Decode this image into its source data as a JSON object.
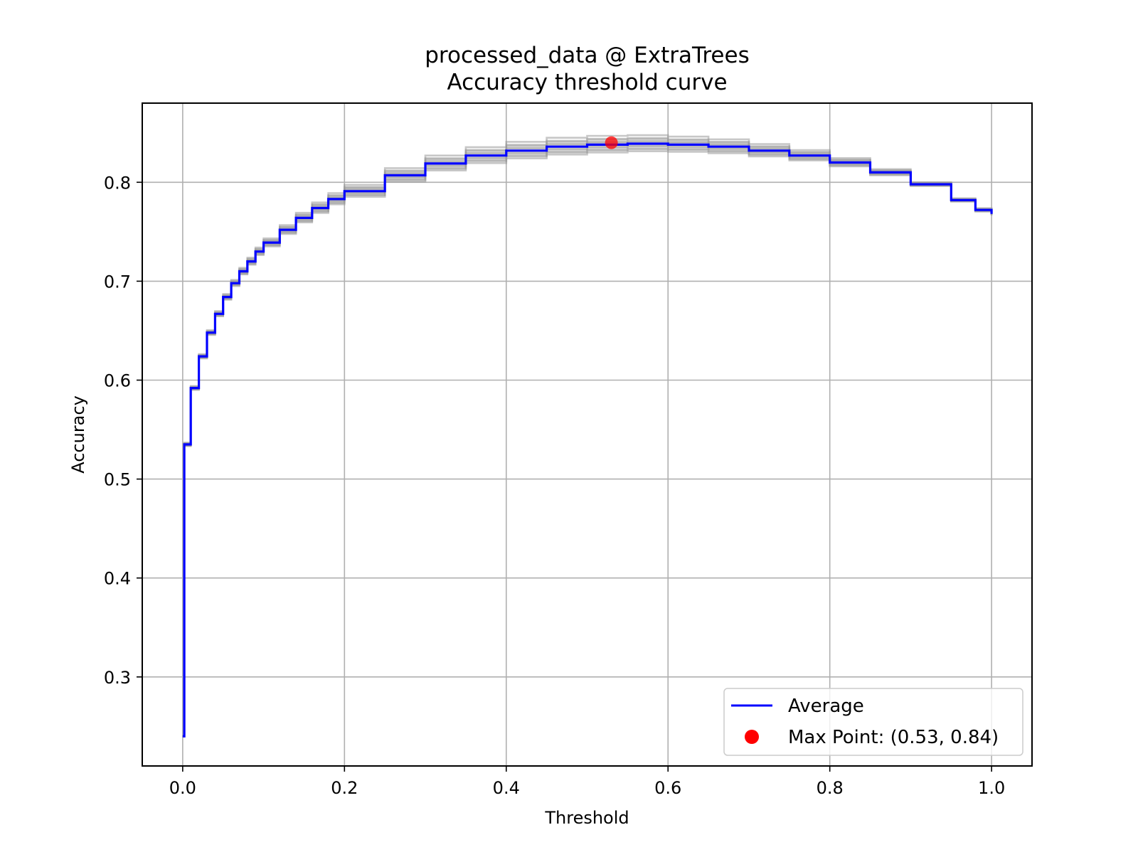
{
  "chart_data": {
    "type": "line",
    "title": "processed_data @ ExtraTrees",
    "subtitle": "Accuracy threshold curve",
    "xlabel": "Threshold",
    "ylabel": "Accuracy",
    "xlim": [
      -0.05,
      1.05
    ],
    "ylim": [
      0.21,
      0.88
    ],
    "x_ticks": [
      0.0,
      0.2,
      0.4,
      0.6,
      0.8,
      1.0
    ],
    "x_tick_labels": [
      "0.0",
      "0.2",
      "0.4",
      "0.6",
      "0.8",
      "1.0"
    ],
    "y_ticks": [
      0.3,
      0.4,
      0.5,
      0.6,
      0.7,
      0.8
    ],
    "y_tick_labels": [
      "0.3",
      "0.4",
      "0.5",
      "0.6",
      "0.7",
      "0.8"
    ],
    "grid": true,
    "legend_position": "lower-right",
    "series": [
      {
        "name": "Average",
        "color": "#0000ff",
        "style": "step",
        "x": [
          0.0,
          0.002,
          0.01,
          0.02,
          0.03,
          0.04,
          0.05,
          0.06,
          0.07,
          0.08,
          0.09,
          0.1,
          0.12,
          0.14,
          0.16,
          0.18,
          0.2,
          0.25,
          0.3,
          0.35,
          0.4,
          0.45,
          0.5,
          0.55,
          0.6,
          0.65,
          0.7,
          0.75,
          0.8,
          0.85,
          0.9,
          0.95,
          0.98,
          1.0
        ],
        "y": [
          0.24,
          0.535,
          0.592,
          0.624,
          0.648,
          0.667,
          0.684,
          0.698,
          0.71,
          0.72,
          0.73,
          0.739,
          0.752,
          0.764,
          0.774,
          0.783,
          0.791,
          0.807,
          0.819,
          0.827,
          0.832,
          0.836,
          0.838,
          0.839,
          0.838,
          0.836,
          0.832,
          0.827,
          0.82,
          0.81,
          0.798,
          0.782,
          0.772,
          0.768
        ]
      }
    ],
    "fold_curves": {
      "color": "#999999",
      "count": 10,
      "offsets": [
        0.006,
        -0.005,
        0.003,
        -0.008,
        0.009,
        -0.003,
        0.005,
        -0.006,
        0.002,
        -0.002
      ]
    },
    "max_point": {
      "label": "Max Point: (0.53, 0.84)",
      "x": 0.53,
      "y": 0.84,
      "color": "#ff0000"
    }
  }
}
